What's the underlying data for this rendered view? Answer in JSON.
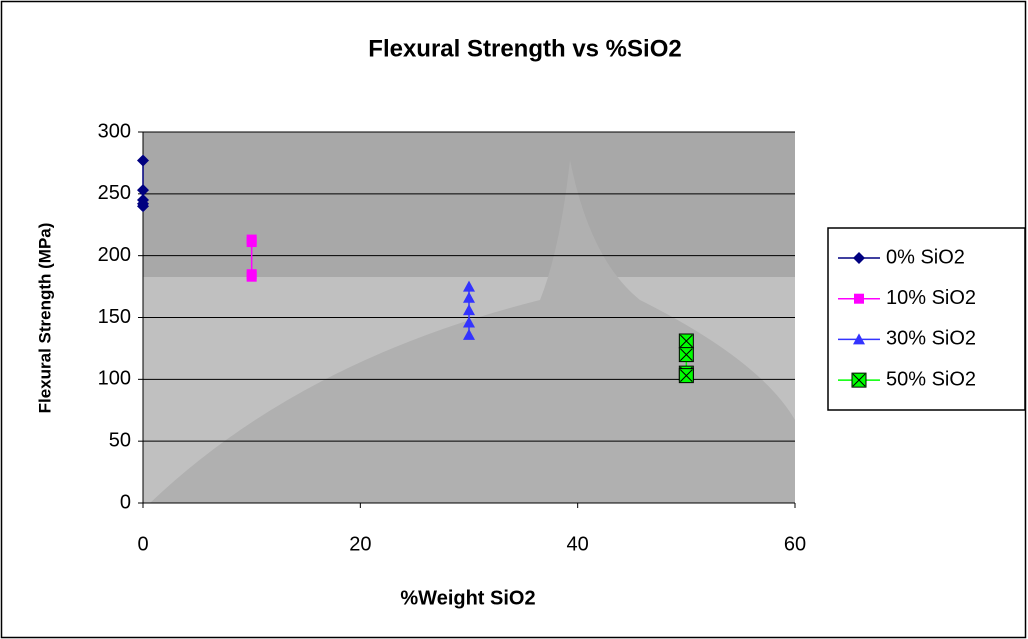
{
  "chart_data": {
    "type": "scatter",
    "title": "Flexural Strength vs %SiO2",
    "x_label": "%Weight SiO2",
    "y_label": "Flexural Strength (MPa)",
    "xlim": [
      0,
      60
    ],
    "xticks": [
      0,
      20,
      40,
      60
    ],
    "ylim": [
      0,
      300
    ],
    "yticks": [
      0,
      50,
      100,
      150,
      200,
      250,
      300
    ],
    "grid": true,
    "legend": "right",
    "series": [
      {
        "name": "0% SiO2",
        "color": "#000080",
        "marker": "diamond",
        "x": [
          0,
          0,
          0,
          0,
          0
        ],
        "values": [
          277,
          253,
          245,
          242,
          240
        ]
      },
      {
        "name": "10% SiO2",
        "color": "#ff00ff",
        "marker": "square",
        "x": [
          10,
          10,
          10,
          10
        ],
        "values": [
          213,
          211,
          185,
          183
        ]
      },
      {
        "name": "30% SiO2",
        "color": "#3333ff",
        "marker": "triangle",
        "x": [
          30,
          30,
          30,
          30,
          30
        ],
        "values": [
          175,
          166,
          156,
          146,
          136
        ]
      },
      {
        "name": "50% SiO2",
        "color": "#00ff00",
        "marker": "x-box",
        "x": [
          50,
          50,
          50,
          50
        ],
        "values": [
          131,
          120,
          105,
          103
        ]
      }
    ]
  }
}
